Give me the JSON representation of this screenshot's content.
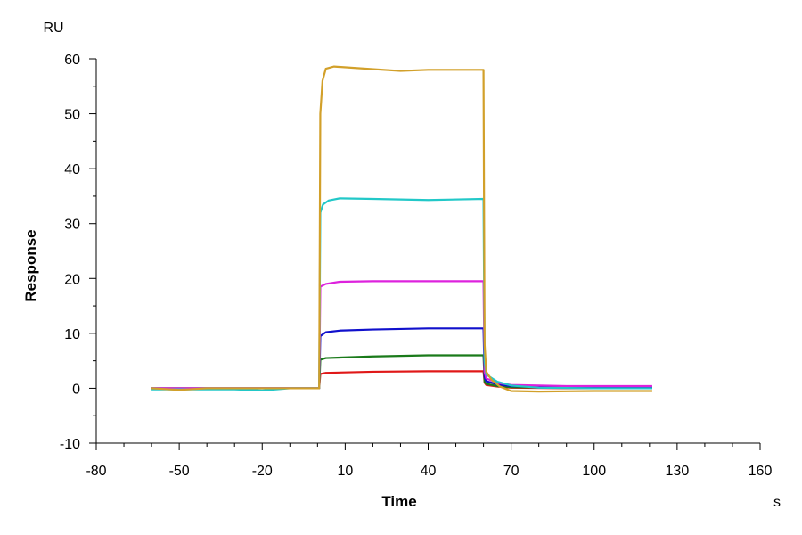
{
  "chart_data": {
    "type": "line",
    "title": "",
    "xlabel": "Time",
    "ylabel": "Response",
    "x_unit": "s",
    "y_unit": "RU",
    "xlim": [
      -80,
      160
    ],
    "ylim": [
      -10,
      60
    ],
    "x_ticks": [
      -80,
      -50,
      -20,
      10,
      40,
      70,
      100,
      130,
      160
    ],
    "y_ticks": [
      -10,
      0,
      10,
      20,
      30,
      40,
      50,
      60
    ],
    "grid": false,
    "legend": "none",
    "series": [
      {
        "color": "#e01818",
        "points": [
          [
            -60,
            0
          ],
          [
            -20,
            0
          ],
          [
            0,
            0
          ],
          [
            0.6,
            0
          ],
          [
            1,
            2.6
          ],
          [
            3,
            2.8
          ],
          [
            20,
            3
          ],
          [
            40,
            3.1
          ],
          [
            60,
            3.1
          ],
          [
            60.4,
            1
          ],
          [
            61,
            0.6
          ],
          [
            65,
            0.3
          ],
          [
            70,
            0.1
          ],
          [
            90,
            0
          ],
          [
            121,
            0
          ]
        ]
      },
      {
        "color": "#1a7a1a",
        "points": [
          [
            -60,
            0
          ],
          [
            -20,
            0
          ],
          [
            0,
            0
          ],
          [
            0.6,
            0
          ],
          [
            1,
            5.2
          ],
          [
            3,
            5.5
          ],
          [
            20,
            5.8
          ],
          [
            40,
            6
          ],
          [
            60,
            6
          ],
          [
            60.4,
            1.2
          ],
          [
            61,
            0.8
          ],
          [
            65,
            0.4
          ],
          [
            70,
            0.2
          ],
          [
            90,
            0.1
          ],
          [
            121,
            0.1
          ]
        ]
      },
      {
        "color": "#1010cc",
        "points": [
          [
            -60,
            0
          ],
          [
            -20,
            0
          ],
          [
            0,
            0
          ],
          [
            0.6,
            0
          ],
          [
            1,
            9.5
          ],
          [
            3,
            10.2
          ],
          [
            8,
            10.5
          ],
          [
            20,
            10.7
          ],
          [
            40,
            10.9
          ],
          [
            60,
            10.9
          ],
          [
            60.4,
            2
          ],
          [
            61,
            1.3
          ],
          [
            65,
            0.7
          ],
          [
            70,
            0.4
          ],
          [
            90,
            0.2
          ],
          [
            121,
            0.2
          ]
        ]
      },
      {
        "color": "#dd22dd",
        "points": [
          [
            -60,
            0
          ],
          [
            -20,
            0
          ],
          [
            0,
            0
          ],
          [
            0.6,
            0
          ],
          [
            1,
            18.5
          ],
          [
            3,
            19
          ],
          [
            8,
            19.4
          ],
          [
            20,
            19.5
          ],
          [
            40,
            19.5
          ],
          [
            60,
            19.5
          ],
          [
            60.4,
            3
          ],
          [
            61,
            1.8
          ],
          [
            65,
            1
          ],
          [
            70,
            0.6
          ],
          [
            90,
            0.4
          ],
          [
            121,
            0.4
          ]
        ]
      },
      {
        "color": "#22c8c8",
        "points": [
          [
            -60,
            -0.2
          ],
          [
            -30,
            -0.2
          ],
          [
            -20,
            -0.4
          ],
          [
            -10,
            0
          ],
          [
            0,
            0
          ],
          [
            0.6,
            0
          ],
          [
            1,
            32
          ],
          [
            2,
            33.5
          ],
          [
            4,
            34.2
          ],
          [
            8,
            34.6
          ],
          [
            20,
            34.5
          ],
          [
            40,
            34.3
          ],
          [
            60,
            34.5
          ],
          [
            60.4,
            5
          ],
          [
            61,
            2.5
          ],
          [
            65,
            1.2
          ],
          [
            70,
            0.5
          ],
          [
            80,
            0.1
          ],
          [
            100,
            0
          ],
          [
            121,
            0
          ]
        ]
      },
      {
        "color": "#d2a02a",
        "points": [
          [
            -60,
            0
          ],
          [
            -50,
            -0.3
          ],
          [
            -40,
            0
          ],
          [
            -20,
            0
          ],
          [
            0,
            0
          ],
          [
            0.6,
            0
          ],
          [
            1,
            50
          ],
          [
            1.8,
            56
          ],
          [
            3,
            58.2
          ],
          [
            6,
            58.6
          ],
          [
            15,
            58.3
          ],
          [
            30,
            57.8
          ],
          [
            40,
            58
          ],
          [
            60,
            58
          ],
          [
            60.4,
            8
          ],
          [
            61,
            3
          ],
          [
            63,
            1.5
          ],
          [
            66,
            0.3
          ],
          [
            70,
            -0.5
          ],
          [
            80,
            -0.6
          ],
          [
            100,
            -0.5
          ],
          [
            121,
            -0.5
          ]
        ]
      }
    ]
  }
}
